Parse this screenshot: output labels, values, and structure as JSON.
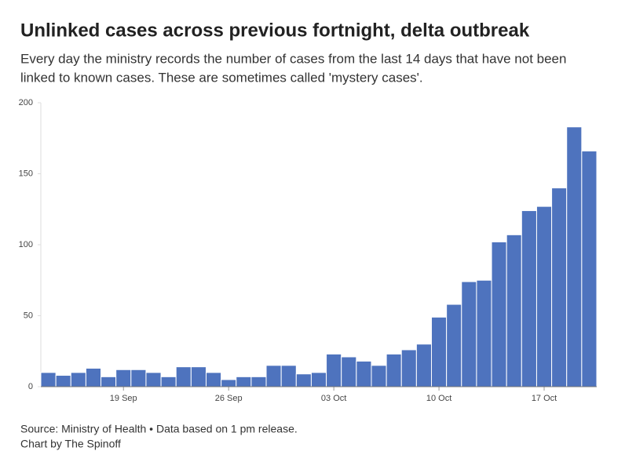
{
  "chart_data": {
    "type": "bar",
    "title": "Unlinked cases across previous fortnight, delta outbreak",
    "subtitle": [
      "Every day the ministry records the number of cases from the last 14 days that have not been",
      "linked to known cases. These are sometimes called 'mystery cases'."
    ],
    "categories": [
      null,
      null,
      null,
      null,
      null,
      "19 Sep",
      null,
      null,
      null,
      null,
      null,
      null,
      "26 Sep",
      null,
      null,
      null,
      null,
      null,
      null,
      "03 Oct",
      null,
      null,
      null,
      null,
      null,
      null,
      "10 Oct",
      null,
      null,
      null,
      null,
      null,
      null,
      "17 Oct",
      null,
      null,
      null
    ],
    "values": [
      10,
      8,
      10,
      13,
      7,
      12,
      12,
      10,
      7,
      14,
      14,
      10,
      5,
      7,
      7,
      15,
      15,
      9,
      10,
      23,
      21,
      18,
      15,
      23,
      26,
      30,
      49,
      58,
      74,
      75,
      102,
      107,
      124,
      127,
      140,
      183,
      166
    ],
    "color": "#4e73be",
    "ylim": [
      0,
      200
    ],
    "yticks": [
      0,
      50,
      100,
      150,
      200
    ],
    "grid": false,
    "source": [
      "Source: Ministry of Health • Data based on 1 pm release.",
      "Chart by The Spinoff"
    ]
  }
}
